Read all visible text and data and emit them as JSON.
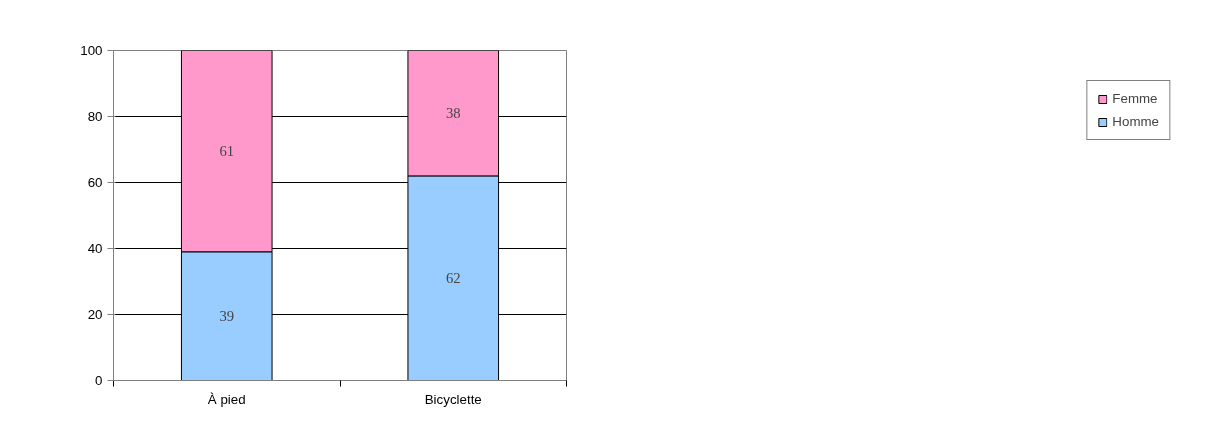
{
  "chart_data": {
    "type": "bar",
    "stacked": true,
    "categories": [
      "À pied",
      "Bicyclette"
    ],
    "series": [
      {
        "name": "Homme",
        "color": "#99ccff",
        "values": [
          39,
          62
        ]
      },
      {
        "name": "Femme",
        "color": "#ff99cc",
        "values": [
          61,
          38
        ]
      }
    ],
    "ylim": [
      0,
      100
    ],
    "yticks": [
      0,
      20,
      40,
      60,
      80,
      100
    ],
    "grid": "y",
    "legend": "right",
    "data_labels": true
  }
}
